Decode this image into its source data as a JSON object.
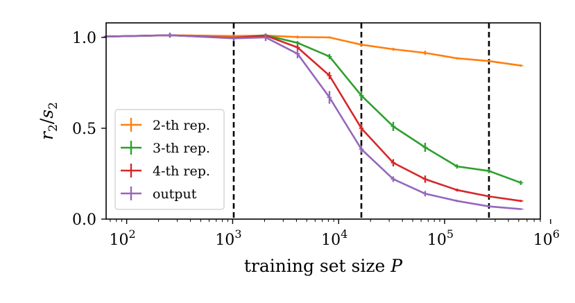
{
  "chart_data": {
    "type": "line",
    "xscale": "log",
    "xlim": [
      64,
      800000
    ],
    "ylim": [
      0.0,
      1.08
    ],
    "xlabel": "training set size P",
    "ylabel": "r2/s2",
    "x_ticks": [
      {
        "value": 100,
        "base": "10",
        "exp": "2"
      },
      {
        "value": 1000,
        "base": "10",
        "exp": "3"
      },
      {
        "value": 10000,
        "base": "10",
        "exp": "4"
      },
      {
        "value": 100000,
        "base": "10",
        "exp": "5"
      },
      {
        "value": 1000000,
        "base": "10",
        "exp": "6"
      }
    ],
    "y_ticks": [
      {
        "value": 0.0,
        "label": "0.0"
      },
      {
        "value": 0.5,
        "label": "0.5"
      },
      {
        "value": 1.0,
        "label": "1.0"
      }
    ],
    "vlines": [
      1024,
      16384,
      262144
    ],
    "grid": false,
    "legend_position": "lower-left",
    "series": [
      {
        "name": "2-th rep.",
        "color": "#ff7f0e",
        "points": [
          {
            "x": 64,
            "y": 1.005,
            "err": 0.006
          },
          {
            "x": 256,
            "y": 1.012,
            "err": 0.01
          },
          {
            "x": 1024,
            "y": 1.008,
            "err": 0.008
          },
          {
            "x": 2048,
            "y": 1.01,
            "err": 0.008
          },
          {
            "x": 4096,
            "y": 1.002,
            "err": 0.008
          },
          {
            "x": 8192,
            "y": 1.0,
            "err": 0.006
          },
          {
            "x": 16384,
            "y": 0.96,
            "err": 0.008
          },
          {
            "x": 32768,
            "y": 0.935,
            "err": 0.008
          },
          {
            "x": 65536,
            "y": 0.915,
            "err": 0.012
          },
          {
            "x": 131072,
            "y": 0.885,
            "err": 0.006
          },
          {
            "x": 262144,
            "y": 0.87,
            "err": 0.006
          },
          {
            "x": 524288,
            "y": 0.845,
            "err": 0.006
          }
        ]
      },
      {
        "name": "3-th rep.",
        "color": "#2ca02c",
        "points": [
          {
            "x": 64,
            "y": 1.005,
            "err": 0.006
          },
          {
            "x": 256,
            "y": 1.012,
            "err": 0.01
          },
          {
            "x": 1024,
            "y": 0.998,
            "err": 0.008
          },
          {
            "x": 2048,
            "y": 1.012,
            "err": 0.01
          },
          {
            "x": 4096,
            "y": 0.97,
            "err": 0.01
          },
          {
            "x": 8192,
            "y": 0.895,
            "err": 0.014
          },
          {
            "x": 16384,
            "y": 0.68,
            "err": 0.025
          },
          {
            "x": 32768,
            "y": 0.51,
            "err": 0.025
          },
          {
            "x": 65536,
            "y": 0.395,
            "err": 0.025
          },
          {
            "x": 131072,
            "y": 0.29,
            "err": 0.012
          },
          {
            "x": 262144,
            "y": 0.265,
            "err": 0.012
          },
          {
            "x": 524288,
            "y": 0.2,
            "err": 0.012
          }
        ]
      },
      {
        "name": "4-th rep.",
        "color": "#d62728",
        "points": [
          {
            "x": 64,
            "y": 1.005,
            "err": 0.006
          },
          {
            "x": 256,
            "y": 1.012,
            "err": 0.01
          },
          {
            "x": 1024,
            "y": 0.998,
            "err": 0.008
          },
          {
            "x": 2048,
            "y": 1.01,
            "err": 0.01
          },
          {
            "x": 4096,
            "y": 0.945,
            "err": 0.015
          },
          {
            "x": 8192,
            "y": 0.79,
            "err": 0.02
          },
          {
            "x": 16384,
            "y": 0.5,
            "err": 0.025
          },
          {
            "x": 32768,
            "y": 0.31,
            "err": 0.02
          },
          {
            "x": 65536,
            "y": 0.22,
            "err": 0.02
          },
          {
            "x": 131072,
            "y": 0.16,
            "err": 0.008
          },
          {
            "x": 262144,
            "y": 0.125,
            "err": 0.006
          },
          {
            "x": 524288,
            "y": 0.1,
            "err": 0.006
          }
        ]
      },
      {
        "name": "output",
        "color": "#9467bd",
        "points": [
          {
            "x": 64,
            "y": 1.005,
            "err": 0.006
          },
          {
            "x": 256,
            "y": 1.012,
            "err": 0.014
          },
          {
            "x": 1024,
            "y": 0.995,
            "err": 0.015
          },
          {
            "x": 2048,
            "y": 1.0,
            "err": 0.02
          },
          {
            "x": 4096,
            "y": 0.91,
            "err": 0.025
          },
          {
            "x": 8192,
            "y": 0.67,
            "err": 0.035
          },
          {
            "x": 16384,
            "y": 0.385,
            "err": 0.02
          },
          {
            "x": 32768,
            "y": 0.22,
            "err": 0.015
          },
          {
            "x": 65536,
            "y": 0.14,
            "err": 0.015
          },
          {
            "x": 131072,
            "y": 0.1,
            "err": 0.006
          },
          {
            "x": 262144,
            "y": 0.07,
            "err": 0.005
          },
          {
            "x": 524288,
            "y": 0.055,
            "err": 0.004
          }
        ]
      }
    ]
  }
}
